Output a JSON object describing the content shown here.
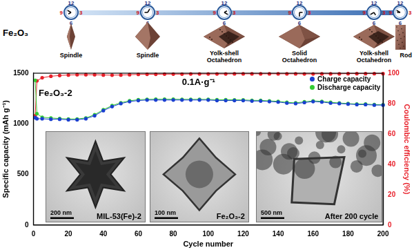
{
  "schematic": {
    "material": "Fe₂O₃",
    "clock_labels": [
      12,
      3,
      6,
      9
    ],
    "stages": [
      {
        "label": [
          "Spindle"
        ]
      },
      {
        "label": [
          "Spindle"
        ]
      },
      {
        "label": [
          "Yolk-shell",
          "Octahedron"
        ]
      },
      {
        "label": [
          "Solid",
          "Octahedron"
        ]
      },
      {
        "label": [
          "Yolk-shell",
          "Octahedron"
        ]
      },
      {
        "label": [
          "Rod"
        ]
      }
    ]
  },
  "chart_data": {
    "type": "line",
    "x": [
      1,
      2,
      5,
      10,
      15,
      20,
      25,
      30,
      35,
      40,
      45,
      50,
      55,
      60,
      65,
      70,
      75,
      80,
      85,
      90,
      95,
      100,
      105,
      110,
      115,
      120,
      125,
      130,
      135,
      140,
      145,
      150,
      155,
      160,
      165,
      170,
      175,
      180,
      185,
      190,
      195,
      200
    ],
    "x_label": "Cycle number",
    "y_label": "Specific capacity (mAh g⁻¹)",
    "y2_label": "Coulombic efficiency (%)",
    "xlim": [
      0,
      200
    ],
    "xticks": [
      0,
      20,
      40,
      60,
      80,
      100,
      120,
      140,
      160,
      180,
      200
    ],
    "ylim": [
      0,
      1500
    ],
    "yticks": [
      0,
      500,
      1000,
      1500
    ],
    "y2lim": [
      0,
      100
    ],
    "y2ticks": [
      0,
      20,
      40,
      60,
      80,
      100
    ],
    "grid": false,
    "legend": "top right",
    "marker": "circle",
    "line_style": "solid",
    "annotations": [
      {
        "text": "Fe₂O₃-2",
        "x": 3,
        "y": 1300
      },
      {
        "text": "0.1A·g⁻¹",
        "x": 85,
        "y": 1410
      }
    ],
    "series": [
      {
        "name": "Charge capacity",
        "color": "#1a3fd0",
        "values": [
          1060,
          1050,
          1050,
          1045,
          1045,
          1040,
          1040,
          1050,
          1080,
          1130,
          1170,
          1200,
          1220,
          1230,
          1235,
          1235,
          1235,
          1235,
          1235,
          1235,
          1235,
          1235,
          1230,
          1230,
          1230,
          1230,
          1225,
          1225,
          1220,
          1215,
          1205,
          1200,
          1210,
          1220,
          1215,
          1205,
          1200,
          1195,
          1190,
          1190,
          1185,
          1185
        ]
      },
      {
        "name": "Discharge capacity",
        "color": "#33cc33",
        "values": [
          1430,
          1100,
          1065,
          1058,
          1052,
          1048,
          1048,
          1058,
          1090,
          1140,
          1180,
          1208,
          1228,
          1238,
          1242,
          1243,
          1243,
          1243,
          1242,
          1242,
          1242,
          1241,
          1238,
          1238,
          1237,
          1236,
          1232,
          1231,
          1227,
          1222,
          1212,
          1207,
          1217,
          1227,
          1222,
          1212,
          1206,
          1200,
          1196,
          1195,
          1190,
          1188
        ]
      },
      {
        "color": "#e8202a",
        "axis": "y2",
        "values": [
          72,
          95,
          97,
          98,
          98.5,
          98.8,
          99,
          99,
          99,
          98.8,
          98.7,
          98.8,
          99,
          99.2,
          99.3,
          99.3,
          99.4,
          99.4,
          99.4,
          99.5,
          99.5,
          99.5,
          99.5,
          99.5,
          99.6,
          99.6,
          99.6,
          99.6,
          99.6,
          99.6,
          99.6,
          99.6,
          99.5,
          99.5,
          99.6,
          99.6,
          99.6,
          99.7,
          99.7,
          99.7,
          99.7,
          99.7
        ]
      }
    ]
  },
  "insets": [
    {
      "caption": "MIL-53(Fe)-2",
      "scale_bar": "200 nm"
    },
    {
      "caption": "Fe₂O₃-2",
      "scale_bar": "100 nm"
    },
    {
      "caption": "After 200 cycle",
      "scale_bar": "500 nm"
    }
  ]
}
